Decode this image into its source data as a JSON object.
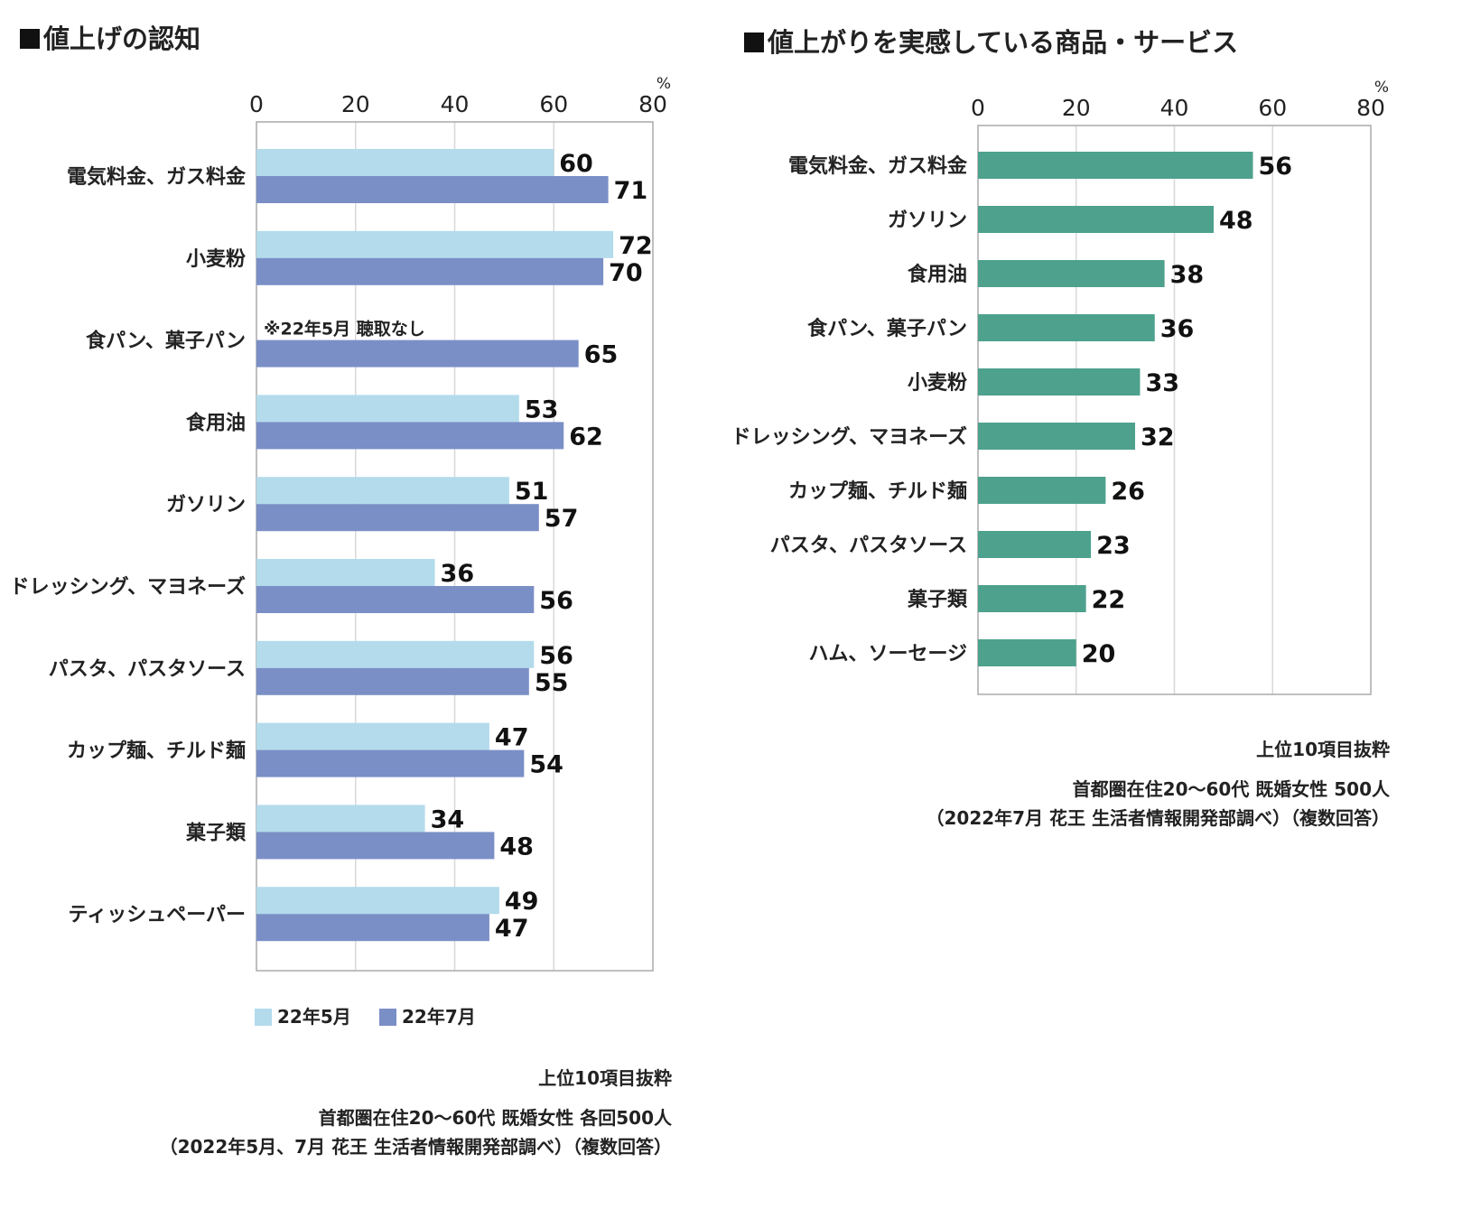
{
  "colors": {
    "may": "#b3dbec",
    "july": "#7a8fc6",
    "teal": "#4da18d",
    "grid": "#d8d8d8",
    "axis": "#aaaaaa"
  },
  "chart_data": [
    {
      "type": "bar",
      "orientation": "horizontal",
      "title": "値上げの認知",
      "unit": "%",
      "xlim": [
        0,
        80
      ],
      "ticks": [
        "0",
        "20",
        "40",
        "60",
        "80"
      ],
      "categories": [
        "電気料金、ガス料金",
        "小麦粉",
        "食パン、菓子パン",
        "食用油",
        "ガソリン",
        "ドレッシング、マヨネーズ",
        "パスタ、パスタソース",
        "カップ麺、チルド麺",
        "菓子類",
        "ティッシュペーパー"
      ],
      "series": [
        {
          "name": "22年5月",
          "values": [
            60,
            72,
            null,
            53,
            51,
            36,
            56,
            47,
            34,
            49
          ]
        },
        {
          "name": "22年7月",
          "values": [
            71,
            70,
            65,
            62,
            57,
            56,
            55,
            54,
            48,
            47
          ]
        }
      ],
      "annotation": "※22年5月 聴取なし",
      "legend": [
        "22年5月",
        "22年7月"
      ]
    },
    {
      "type": "bar",
      "orientation": "horizontal",
      "title": "値上がりを実感している商品・サービス",
      "unit": "%",
      "xlim": [
        0,
        80
      ],
      "ticks": [
        "0",
        "20",
        "40",
        "60",
        "80"
      ],
      "categories": [
        "電気料金、ガス料金",
        "ガソリン",
        "食用油",
        "食パン、菓子パン",
        "小麦粉",
        "ドレッシング、マヨネーズ",
        "カップ麺、チルド麺",
        "パスタ、パスタソース",
        "菓子類",
        "ハム、ソーセージ"
      ],
      "series": [
        {
          "name": "2022年7月",
          "values": [
            56,
            48,
            38,
            36,
            33,
            32,
            26,
            23,
            22,
            20
          ]
        }
      ]
    }
  ],
  "footnotes": {
    "left": [
      "上位10項目抜粋",
      "首都圏在住20〜60代 既婚女性 各回500人",
      "（2022年5月、7月 花王 生活者情報開発部調べ）（複数回答）"
    ],
    "right": [
      "上位10項目抜粋",
      "首都圏在住20〜60代 既婚女性 500人",
      "（2022年7月 花王 生活者情報開発部調べ）（複数回答）"
    ]
  }
}
